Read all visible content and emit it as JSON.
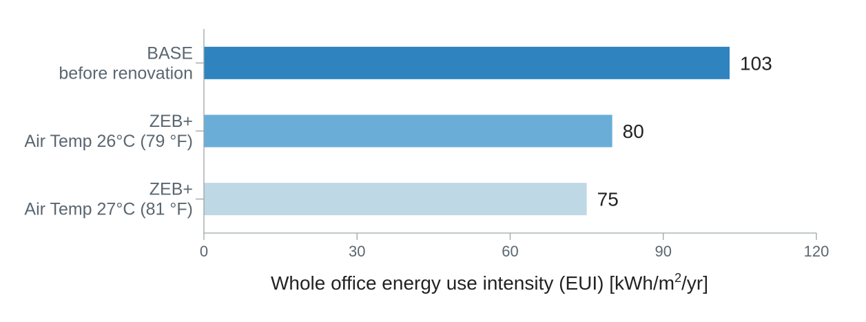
{
  "chart_data": {
    "type": "bar",
    "orientation": "horizontal",
    "categories": [
      [
        "BASE",
        "before renovation"
      ],
      [
        "ZEB+",
        "Air Temp 26°C (79 °F)"
      ],
      [
        "ZEB+",
        "Air Temp 27°C (81 °F)"
      ]
    ],
    "values": [
      103,
      80,
      75
    ],
    "value_labels": [
      "103",
      "80",
      "75"
    ],
    "bar_colors": [
      "#2f83be",
      "#6aaed8",
      "#bfd8e6"
    ],
    "xlabel": {
      "text": "Whole office energy use intensity (EUI) [kWh/m",
      "superscript": "2",
      "suffix": "/yr]"
    },
    "xlim": [
      0,
      120
    ],
    "xticks": [
      0,
      30,
      60,
      90,
      120
    ],
    "grid": false,
    "legend": "none"
  }
}
